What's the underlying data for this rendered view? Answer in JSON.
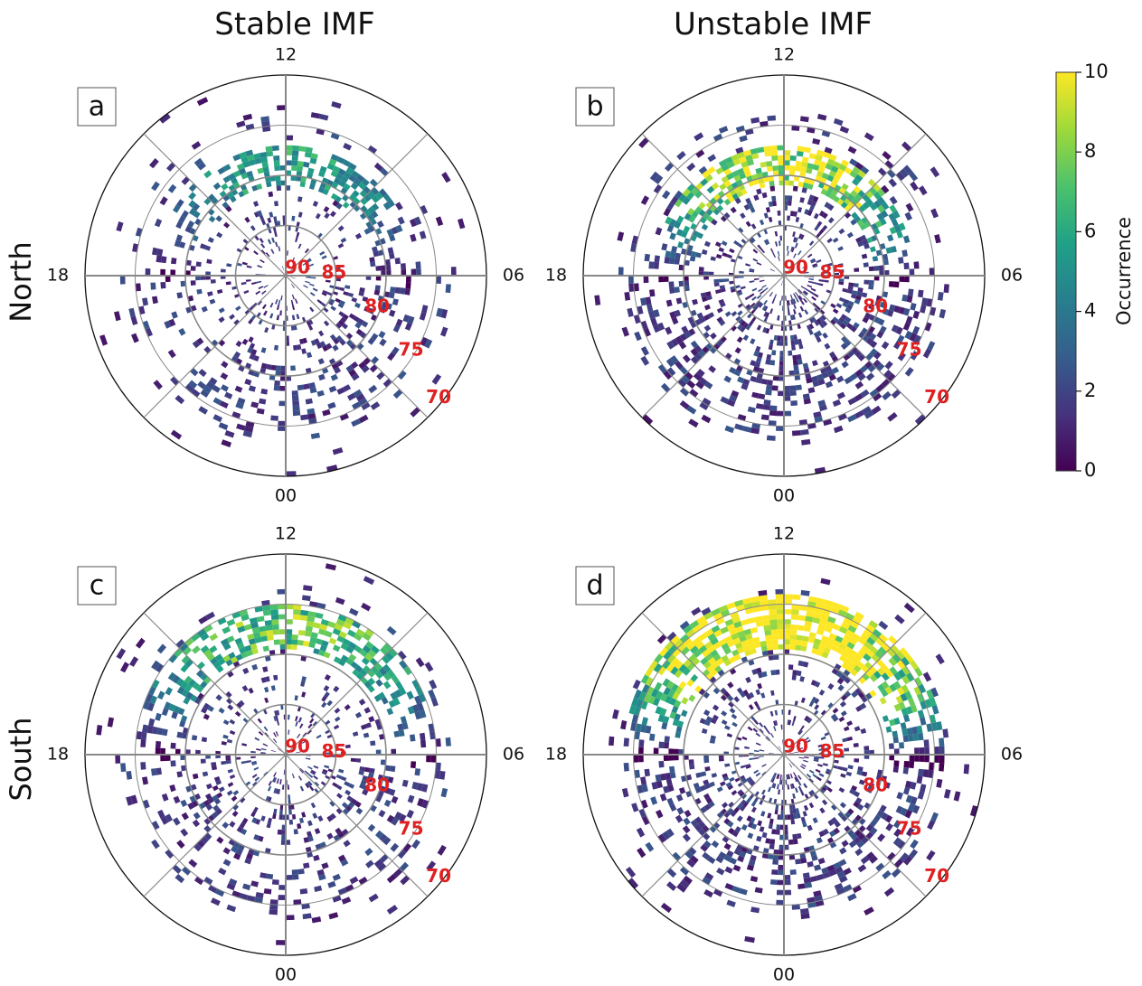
{
  "columns": [
    "Stable IMF",
    "Unstable IMF"
  ],
  "rows": [
    "North",
    "South"
  ],
  "colormap": [
    "#440154",
    "#46327e",
    "#365c8d",
    "#277f8e",
    "#1fa187",
    "#4ac16d",
    "#a0da39",
    "#fde725"
  ],
  "colorbar": {
    "label": "Occurrence",
    "min": 0,
    "max": 10,
    "ticks": [
      "0",
      "2",
      "4",
      "6",
      "8",
      "10"
    ]
  },
  "chart_data": [
    {
      "type": "heatmap",
      "panel": "a",
      "hemisphere": "North",
      "imf": "Stable IMF",
      "theta_tick_labels": [
        "12",
        "06",
        "00",
        "18"
      ],
      "radial_tick_labels": [
        "90",
        "85",
        "80",
        "75",
        "70"
      ],
      "color_range": [
        0,
        10
      ],
      "hotspots": [
        {
          "mlt": 11.8,
          "mlat": 78.5,
          "occurrence": 7
        }
      ],
      "peak_occurrence_band": "MLAT 77-80, MLT 09-15"
    },
    {
      "type": "heatmap",
      "panel": "b",
      "hemisphere": "North",
      "imf": "Unstable IMF",
      "theta_tick_labels": [
        "12",
        "06",
        "00",
        "18"
      ],
      "radial_tick_labels": [
        "90",
        "85",
        "80",
        "75",
        "70"
      ],
      "color_range": [
        0,
        10
      ],
      "hotspots": [
        {
          "mlt": 12.5,
          "mlat": 79,
          "occurrence": 10
        }
      ],
      "peak_occurrence_band": "MLAT 77-80, MLT 09-15"
    },
    {
      "type": "heatmap",
      "panel": "c",
      "hemisphere": "South",
      "imf": "Stable IMF",
      "theta_tick_labels": [
        "12",
        "06",
        "00",
        "18"
      ],
      "radial_tick_labels": [
        "90",
        "85",
        "80",
        "75",
        "70"
      ],
      "color_range": [
        0,
        10
      ],
      "hotspots": [
        {
          "mlt": 12.0,
          "mlat": 76.5,
          "occurrence": 9
        }
      ],
      "peak_occurrence_band": "MLAT 75-79, MLT 09-15"
    },
    {
      "type": "heatmap",
      "panel": "d",
      "hemisphere": "South",
      "imf": "Unstable IMF",
      "theta_tick_labels": [
        "12",
        "06",
        "00",
        "18"
      ],
      "radial_tick_labels": [
        "90",
        "85",
        "80",
        "75",
        "70"
      ],
      "color_range": [
        0,
        10
      ],
      "hotspots": [
        {
          "mlt": 12.0,
          "mlat": 76.5,
          "occurrence": 10
        }
      ],
      "peak_occurrence_band": "MLAT 74-79, MLT 08-17"
    }
  ]
}
